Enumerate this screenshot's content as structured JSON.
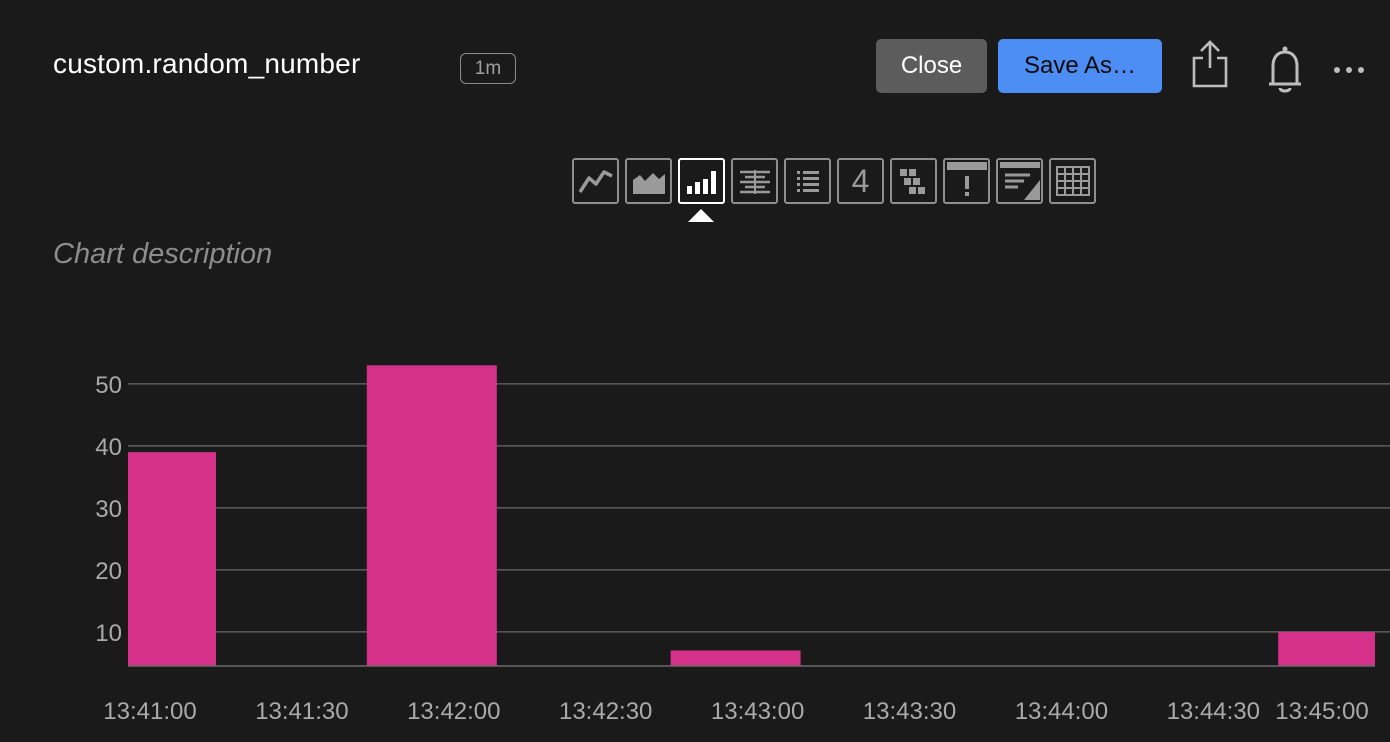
{
  "header": {
    "title": "custom.random_number",
    "interval_badge": "1m",
    "close_label": "Close",
    "save_as_label": "Save As…",
    "icons": [
      "share-icon",
      "bell-icon",
      "more-icon"
    ]
  },
  "toolbar": {
    "tools": [
      {
        "name": "line-chart-icon"
      },
      {
        "name": "area-chart-icon"
      },
      {
        "name": "column-chart-icon",
        "active": true
      },
      {
        "name": "heatmap-icon"
      },
      {
        "name": "list-icon"
      },
      {
        "name": "single-value-icon",
        "text": "4"
      },
      {
        "name": "event-feed-icon"
      },
      {
        "name": "alert-icon"
      },
      {
        "name": "text-note-icon"
      },
      {
        "name": "table-icon"
      }
    ]
  },
  "description_placeholder": "Chart description",
  "colors": {
    "background": "#1a1a1a",
    "bar": "#d5308a",
    "gridline": "#6a6a6a",
    "axis_text": "#aaaaaa",
    "primary_button": "#4c8ef4",
    "secondary_button": "#5c5c5c"
  },
  "chart_data": {
    "type": "bar",
    "x_tick_labels": [
      "13:41:00",
      "13:41:30",
      "13:42:00",
      "13:42:30",
      "13:43:00",
      "13:43:30",
      "13:44:00",
      "13:44:30",
      "13:45:00"
    ],
    "categories": [
      "13:41:00",
      "13:42:00",
      "13:43:00",
      "13:44:00",
      "13:45:00"
    ],
    "values": [
      39,
      53,
      7,
      0,
      10
    ],
    "y_ticks": [
      10,
      20,
      30,
      40,
      50
    ],
    "ylim": [
      4.5,
      55
    ],
    "grid": true,
    "legend": "none"
  }
}
